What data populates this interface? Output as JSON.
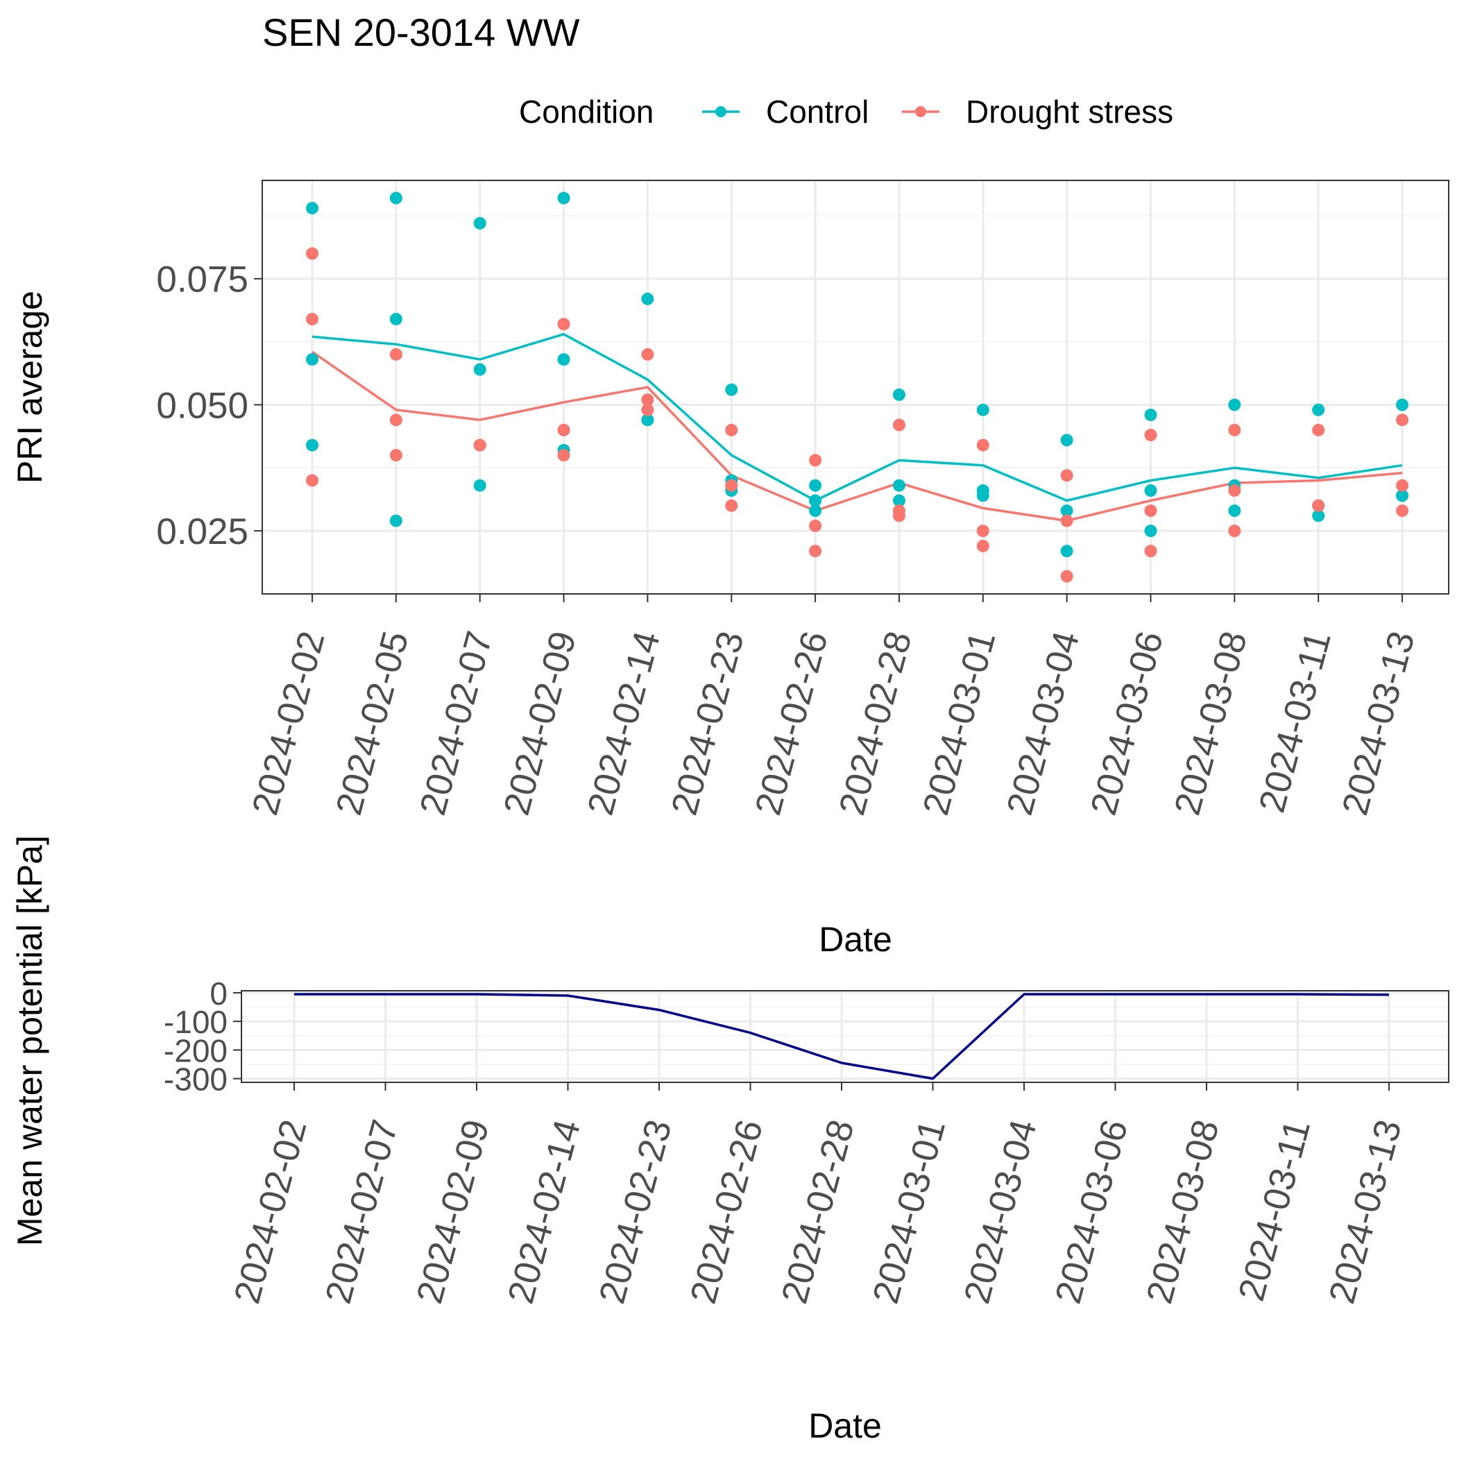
{
  "title": "SEN 20-3014 WW",
  "legend": {
    "title": "Condition",
    "items": [
      {
        "label": "Control",
        "color": "#00BFC4"
      },
      {
        "label": "Drought stress",
        "color": "#F8766D"
      }
    ]
  },
  "chart_data": [
    {
      "type": "scatter",
      "title": "SEN 20-3014 WW",
      "xlabel": "Date",
      "ylabel": "PRI average",
      "ylim": [
        0.0125,
        0.0945
      ],
      "yticks": [
        "0.025",
        "0.050",
        "0.075"
      ],
      "categories": [
        "2024-02-02",
        "2024-02-05",
        "2024-02-07",
        "2024-02-09",
        "2024-02-14",
        "2024-02-23",
        "2024-02-26",
        "2024-02-28",
        "2024-03-01",
        "2024-03-04",
        "2024-03-06",
        "2024-03-08",
        "2024-03-11",
        "2024-03-13"
      ],
      "grid": true,
      "legend_position": "top",
      "series": [
        {
          "name": "Control",
          "color": "#00BFC4",
          "points": [
            [
              0.089,
              0.059,
              0.042
            ],
            [
              0.091,
              0.067,
              0.027
            ],
            [
              0.086,
              0.057,
              0.034
            ],
            [
              0.091,
              0.059,
              0.041
            ],
            [
              0.071,
              0.047,
              0.047
            ],
            [
              0.053,
              0.035,
              0.033
            ],
            [
              0.034,
              0.031,
              0.029
            ],
            [
              0.052,
              0.034,
              0.031
            ],
            [
              0.049,
              0.033,
              0.032
            ],
            [
              0.043,
              0.029,
              0.021
            ],
            [
              0.048,
              0.033,
              0.025
            ],
            [
              0.05,
              0.034,
              0.029
            ],
            [
              0.049,
              0.03,
              0.028
            ],
            [
              0.05,
              0.032,
              0.032
            ]
          ],
          "mean": [
            0.0635,
            0.062,
            0.059,
            0.064,
            0.055,
            0.04,
            0.031,
            0.039,
            0.038,
            0.031,
            0.035,
            0.0375,
            0.0355,
            0.038
          ]
        },
        {
          "name": "Drought stress",
          "color": "#F8766D",
          "points": [
            [
              0.08,
              0.067,
              0.035
            ],
            [
              0.06,
              0.047,
              0.04
            ],
            [
              0.042,
              0.042,
              0.042
            ],
            [
              0.066,
              0.045,
              0.04
            ],
            [
              0.06,
              0.051,
              0.049
            ],
            [
              0.045,
              0.034,
              0.03
            ],
            [
              0.039,
              0.026,
              0.021
            ],
            [
              0.046,
              0.029,
              0.028
            ],
            [
              0.042,
              0.025,
              0.022
            ],
            [
              0.036,
              0.027,
              0.016
            ],
            [
              0.044,
              0.029,
              0.021
            ],
            [
              0.045,
              0.033,
              0.025
            ],
            [
              0.045,
              0.03,
              0.03
            ],
            [
              0.047,
              0.034,
              0.029
            ]
          ],
          "mean": [
            0.0605,
            0.049,
            0.047,
            0.0505,
            0.0535,
            0.036,
            0.029,
            0.0345,
            0.0295,
            0.027,
            0.031,
            0.0345,
            0.035,
            0.0365
          ]
        }
      ]
    },
    {
      "type": "line",
      "xlabel": "Date",
      "ylabel": "Mean water potential [kPa]",
      "ylim": [
        -313,
        7
      ],
      "yticks": [
        "0",
        "-100",
        "-200",
        "-300"
      ],
      "categories": [
        "2024-02-02",
        "2024-02-07",
        "2024-02-09",
        "2024-02-14",
        "2024-02-23",
        "2024-02-26",
        "2024-02-28",
        "2024-03-01",
        "2024-03-04",
        "2024-03-06",
        "2024-03-08",
        "2024-03-11",
        "2024-03-13"
      ],
      "grid": true,
      "series": [
        {
          "color": "#00008B",
          "values": [
            -5,
            -5,
            -5,
            -10,
            -60,
            -140,
            -245,
            -300,
            -5,
            -5,
            -5,
            -5,
            -7
          ]
        }
      ]
    }
  ]
}
